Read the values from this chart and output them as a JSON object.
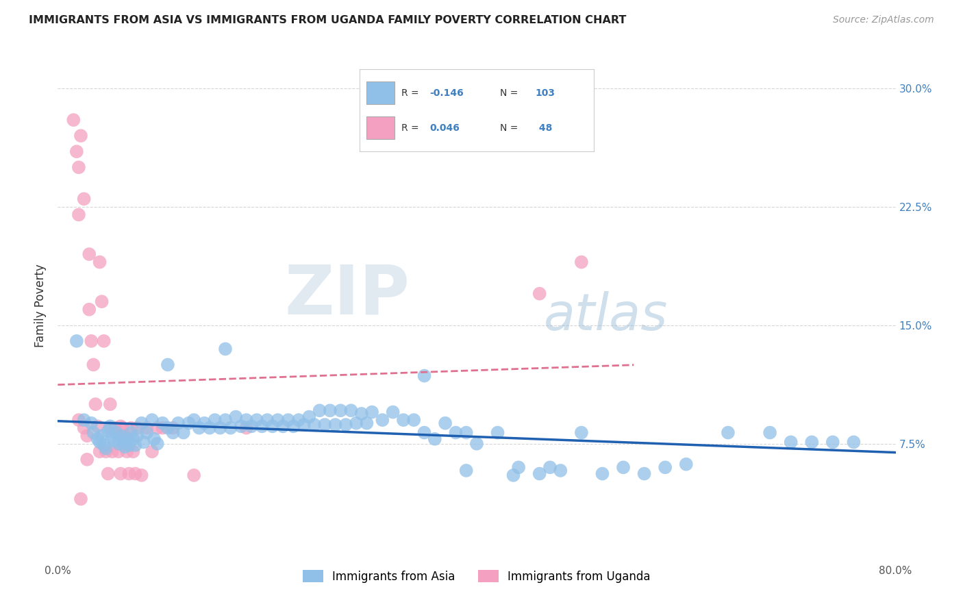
{
  "title": "IMMIGRANTS FROM ASIA VS IMMIGRANTS FROM UGANDA FAMILY POVERTY CORRELATION CHART",
  "source": "Source: ZipAtlas.com",
  "ylabel": "Family Poverty",
  "ytick_vals": [
    0.075,
    0.15,
    0.225,
    0.3
  ],
  "ytick_labels": [
    "7.5%",
    "15.0%",
    "22.5%",
    "30.0%"
  ],
  "xlim": [
    0.0,
    0.8
  ],
  "ylim": [
    0.0,
    0.325
  ],
  "r_asia": -0.146,
  "n_asia": 103,
  "r_uganda": 0.046,
  "n_uganda": 48,
  "color_asia": "#90C0E8",
  "color_uganda": "#F4A0C0",
  "color_asia_line": "#2060B0",
  "color_uganda_line": "#E07090",
  "legend_label_asia": "Immigrants from Asia",
  "legend_label_uganda": "Immigrants from Uganda",
  "watermark_zip": "ZIP",
  "watermark_atlas": "atlas",
  "background_color": "#ffffff",
  "grid_color": "#cccccc",
  "asia_x": [
    0.018,
    0.025,
    0.032,
    0.034,
    0.038,
    0.04,
    0.042,
    0.044,
    0.046,
    0.048,
    0.05,
    0.052,
    0.054,
    0.056,
    0.058,
    0.06,
    0.062,
    0.064,
    0.066,
    0.068,
    0.07,
    0.072,
    0.074,
    0.076,
    0.08,
    0.082,
    0.085,
    0.09,
    0.092,
    0.095,
    0.1,
    0.105,
    0.11,
    0.115,
    0.12,
    0.125,
    0.13,
    0.135,
    0.14,
    0.145,
    0.15,
    0.155,
    0.16,
    0.165,
    0.17,
    0.175,
    0.18,
    0.185,
    0.19,
    0.195,
    0.2,
    0.205,
    0.21,
    0.215,
    0.22,
    0.225,
    0.23,
    0.235,
    0.24,
    0.245,
    0.25,
    0.255,
    0.26,
    0.265,
    0.27,
    0.275,
    0.28,
    0.285,
    0.29,
    0.295,
    0.3,
    0.31,
    0.32,
    0.33,
    0.34,
    0.35,
    0.36,
    0.37,
    0.38,
    0.39,
    0.4,
    0.42,
    0.44,
    0.46,
    0.48,
    0.5,
    0.52,
    0.54,
    0.56,
    0.58,
    0.6,
    0.64,
    0.68,
    0.7,
    0.72,
    0.74,
    0.76,
    0.47,
    0.435,
    0.39,
    0.105,
    0.16,
    0.35
  ],
  "asia_y": [
    0.14,
    0.09,
    0.088,
    0.082,
    0.078,
    0.076,
    0.08,
    0.074,
    0.072,
    0.083,
    0.086,
    0.079,
    0.077,
    0.082,
    0.075,
    0.08,
    0.076,
    0.073,
    0.078,
    0.074,
    0.082,
    0.078,
    0.074,
    0.08,
    0.088,
    0.076,
    0.082,
    0.09,
    0.078,
    0.075,
    0.088,
    0.085,
    0.082,
    0.088,
    0.082,
    0.088,
    0.09,
    0.085,
    0.088,
    0.085,
    0.09,
    0.085,
    0.09,
    0.085,
    0.092,
    0.086,
    0.09,
    0.086,
    0.09,
    0.086,
    0.09,
    0.086,
    0.09,
    0.086,
    0.09,
    0.086,
    0.09,
    0.087,
    0.092,
    0.087,
    0.096,
    0.087,
    0.096,
    0.087,
    0.096,
    0.087,
    0.096,
    0.088,
    0.094,
    0.088,
    0.095,
    0.09,
    0.095,
    0.09,
    0.09,
    0.082,
    0.078,
    0.088,
    0.082,
    0.082,
    0.075,
    0.082,
    0.06,
    0.056,
    0.058,
    0.082,
    0.056,
    0.06,
    0.056,
    0.06,
    0.062,
    0.082,
    0.082,
    0.076,
    0.076,
    0.076,
    0.076,
    0.06,
    0.055,
    0.058,
    0.125,
    0.135,
    0.118
  ],
  "uganda_x": [
    0.015,
    0.018,
    0.02,
    0.02,
    0.02,
    0.022,
    0.022,
    0.025,
    0.025,
    0.028,
    0.028,
    0.03,
    0.03,
    0.032,
    0.034,
    0.036,
    0.038,
    0.04,
    0.04,
    0.042,
    0.044,
    0.046,
    0.048,
    0.05,
    0.05,
    0.052,
    0.055,
    0.058,
    0.06,
    0.06,
    0.062,
    0.064,
    0.066,
    0.068,
    0.07,
    0.072,
    0.074,
    0.076,
    0.08,
    0.085,
    0.09,
    0.095,
    0.1,
    0.11,
    0.13,
    0.18,
    0.46,
    0.5
  ],
  "uganda_y": [
    0.28,
    0.26,
    0.25,
    0.22,
    0.09,
    0.04,
    0.27,
    0.23,
    0.085,
    0.08,
    0.065,
    0.195,
    0.16,
    0.14,
    0.125,
    0.1,
    0.086,
    0.07,
    0.19,
    0.165,
    0.14,
    0.07,
    0.056,
    0.1,
    0.085,
    0.07,
    0.085,
    0.07,
    0.086,
    0.056,
    0.085,
    0.08,
    0.07,
    0.056,
    0.085,
    0.07,
    0.056,
    0.085,
    0.055,
    0.085,
    0.07,
    0.085,
    0.085,
    0.085,
    0.055,
    0.085,
    0.17,
    0.19
  ]
}
